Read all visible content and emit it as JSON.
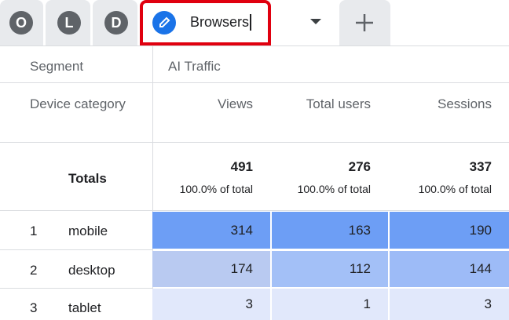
{
  "tabs": [
    "O",
    "L",
    "D",
    "Browsers"
  ],
  "table": {
    "segment_label": "Segment",
    "segment": "AI Traffic",
    "dimension": "Device category",
    "columns": [
      "Views",
      "Total users",
      "Sessions"
    ],
    "totals_label": "Totals",
    "totals": [
      491,
      276,
      337
    ],
    "totals_share": [
      "100.0% of total",
      "100.0% of total",
      "100.0% of total"
    ],
    "rows": [
      {
        "index": 1,
        "label": "mobile",
        "values": [
          314,
          163,
          190
        ]
      },
      {
        "index": 2,
        "label": "desktop",
        "values": [
          174,
          112,
          144
        ]
      },
      {
        "index": 3,
        "label": "tablet",
        "values": [
          3,
          1,
          3
        ]
      }
    ]
  }
}
